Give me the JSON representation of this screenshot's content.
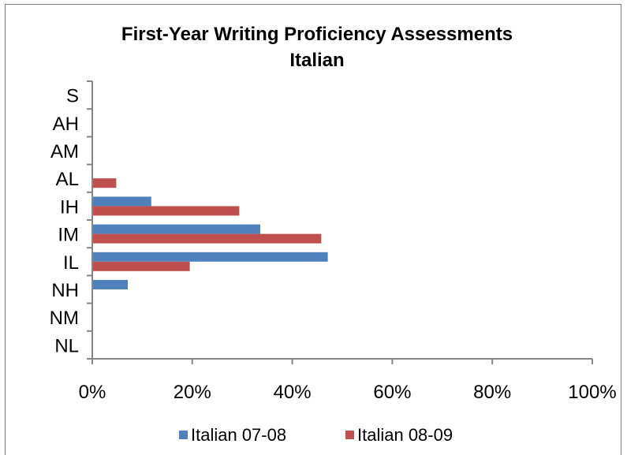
{
  "chart_data": {
    "type": "bar",
    "orientation": "horizontal",
    "title": "First-Year Writing Proficiency Assessments",
    "subtitle": "Italian",
    "categories": [
      "S",
      "AH",
      "AM",
      "AL",
      "IH",
      "IM",
      "IL",
      "NH",
      "NM",
      "NL"
    ],
    "series": [
      {
        "name": "Italian 07-08",
        "color": "#4f81bd",
        "values": [
          0,
          0,
          0,
          0,
          11.8,
          33.6,
          47.1,
          7.1,
          0,
          0
        ]
      },
      {
        "name": "Italian 08-09",
        "color": "#c0504d",
        "values": [
          0,
          0,
          0,
          4.8,
          29.4,
          45.8,
          19.5,
          0,
          0,
          0
        ]
      }
    ],
    "xlim": [
      0,
      100
    ],
    "x_ticks": [
      "0%",
      "20%",
      "40%",
      "60%",
      "80%",
      "100%"
    ],
    "grid": false,
    "legend_position": "bottom"
  }
}
